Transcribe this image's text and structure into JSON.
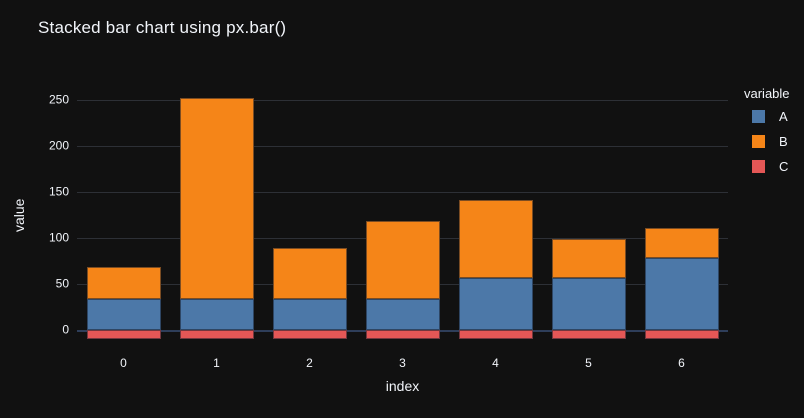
{
  "chart_data": {
    "type": "bar",
    "barmode": "stack",
    "title": "Stacked bar chart using px.bar()",
    "xlabel": "index",
    "ylabel": "value",
    "legend_title": "variable",
    "legend_position": "right",
    "grid": true,
    "theme": "plotly_dark",
    "categories": [
      "0",
      "1",
      "2",
      "3",
      "4",
      "5",
      "6"
    ],
    "series": [
      {
        "name": "A",
        "color": "#4C78A8",
        "values": [
          34,
          34,
          34,
          34,
          57,
          57,
          78
        ]
      },
      {
        "name": "B",
        "color": "#F58518",
        "values": [
          34,
          218,
          55,
          84,
          84,
          42,
          33
        ]
      },
      {
        "name": "C",
        "color": "#E45756",
        "values": [
          -10,
          -10,
          -10,
          -10,
          -10,
          -10,
          -10
        ]
      }
    ],
    "stack_totals": [
      68,
      252,
      89,
      118,
      141,
      99,
      111
    ],
    "yticks": [
      0,
      50,
      100,
      150,
      200,
      250
    ],
    "ylim": [
      -16.3,
      266.3
    ],
    "colors": {
      "background": "#111111",
      "font": "#f2f5fa",
      "grid": "#2d3036",
      "zeroline": "#2e3e5a"
    }
  }
}
